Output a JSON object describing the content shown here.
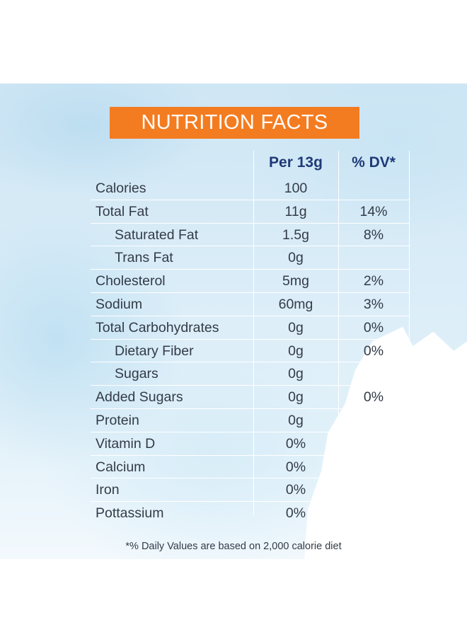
{
  "title": "NUTRITION FACTS",
  "columns": {
    "per": "Per 13g",
    "dv": "% DV*"
  },
  "rows": [
    {
      "label": "Calories",
      "per": "100",
      "dv": "",
      "indent": false
    },
    {
      "label": "Total Fat",
      "per": "11g",
      "dv": "14%",
      "indent": false
    },
    {
      "label": "Saturated Fat",
      "per": "1.5g",
      "dv": "8%",
      "indent": true
    },
    {
      "label": "Trans Fat",
      "per": "0g",
      "dv": "",
      "indent": true
    },
    {
      "label": "Cholesterol",
      "per": "5mg",
      "dv": "2%",
      "indent": false
    },
    {
      "label": "Sodium",
      "per": "60mg",
      "dv": "3%",
      "indent": false
    },
    {
      "label": "Total Carbohydrates",
      "per": "0g",
      "dv": "0%",
      "indent": false
    },
    {
      "label": "Dietary Fiber",
      "per": "0g",
      "dv": "0%",
      "indent": true
    },
    {
      "label": "Sugars",
      "per": "0g",
      "dv": "",
      "indent": true
    },
    {
      "label": "Added Sugars",
      "per": "0g",
      "dv": "0%",
      "indent": false
    },
    {
      "label": "Protein",
      "per": "0g",
      "dv": "",
      "indent": false
    },
    {
      "label": "Vitamin D",
      "per": "0%",
      "dv": "",
      "indent": false
    },
    {
      "label": "Calcium",
      "per": "0%",
      "dv": "",
      "indent": false
    },
    {
      "label": "Iron",
      "per": "0%",
      "dv": "",
      "indent": false
    },
    {
      "label": "Pottassium",
      "per": "0%",
      "dv": "",
      "indent": false
    }
  ],
  "footnote": "*% Daily Values are based on 2,000 calorie diet",
  "colors": {
    "header_bg": "#f47c20",
    "column_heading": "#1f3a78",
    "text": "#333b47"
  }
}
